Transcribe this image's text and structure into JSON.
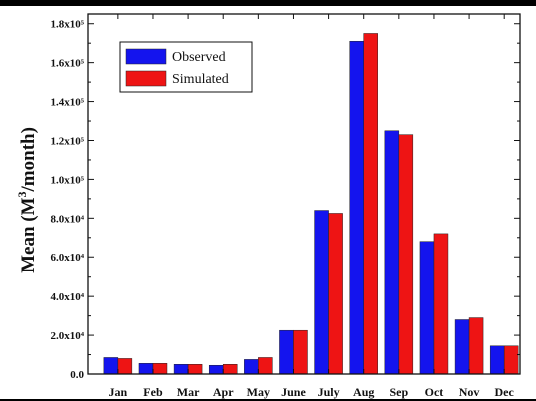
{
  "chart_data": {
    "type": "bar",
    "ylabel": "Mean (M³/month)",
    "ylim": [
      0,
      185000
    ],
    "yticks": [
      {
        "value": 0,
        "label": "0.0"
      },
      {
        "value": 20000,
        "label": "2.0x10⁴"
      },
      {
        "value": 40000,
        "label": "4.0x10⁴"
      },
      {
        "value": 60000,
        "label": "6.0x10⁴"
      },
      {
        "value": 80000,
        "label": "8.0x10⁴"
      },
      {
        "value": 100000,
        "label": "1.0x10⁵"
      },
      {
        "value": 120000,
        "label": "1.2x10⁵"
      },
      {
        "value": 140000,
        "label": "1.4x10⁵"
      },
      {
        "value": 160000,
        "label": "1.6x10⁵"
      },
      {
        "value": 180000,
        "label": "1.8x10⁵"
      }
    ],
    "categories": [
      "Jan",
      "Feb",
      "Mar",
      "Apr",
      "May",
      "June",
      "July",
      "Aug",
      "Sep",
      "Oct",
      "Nov",
      "Dec"
    ],
    "series": [
      {
        "name": "Observed",
        "color": "#1414ee",
        "values": [
          8500,
          5500,
          5000,
          4500,
          7500,
          22500,
          84000,
          171000,
          125000,
          68000,
          28000,
          14500
        ]
      },
      {
        "name": "Simulated",
        "color": "#ee1414",
        "values": [
          8000,
          5500,
          5000,
          5000,
          8500,
          22500,
          82500,
          175000,
          123000,
          72000,
          29000,
          14500
        ]
      }
    ],
    "legend_position": "top-left",
    "grid": false
  }
}
